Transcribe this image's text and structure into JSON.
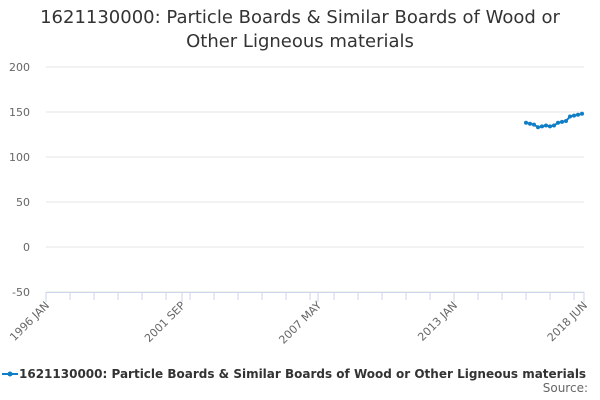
{
  "chart_data": {
    "type": "line",
    "title_lines": [
      "1621130000: Particle Boards & Similar Boards of Wood or",
      "Other Ligneous materials"
    ],
    "x_axis": {
      "type": "datetime",
      "min": "1996-01",
      "max": "2018-06",
      "tick_labels": [
        "1996 JAN",
        "2001 SEP",
        "2007 MAY",
        "2013 JAN",
        "2018 JUN"
      ],
      "minor_ticks_every_months": 12
    },
    "y_axis": {
      "min": -50,
      "max": 200,
      "tick_values": [
        -50,
        0,
        50,
        100,
        150,
        200
      ],
      "tick_labels": [
        "-50",
        "0",
        "50",
        "100",
        "150",
        "200"
      ],
      "grid": true
    },
    "series": [
      {
        "name": "1621130000: Particle Boards & Similar Boards of Wood or Other Ligneous materials",
        "color": "#0f7ec6",
        "points": [
          {
            "x": "2016-01",
            "y": 138
          },
          {
            "x": "2016-03",
            "y": 137
          },
          {
            "x": "2016-05",
            "y": 136
          },
          {
            "x": "2016-07",
            "y": 133
          },
          {
            "x": "2016-09",
            "y": 134
          },
          {
            "x": "2016-11",
            "y": 135
          },
          {
            "x": "2017-01",
            "y": 134
          },
          {
            "x": "2017-03",
            "y": 135
          },
          {
            "x": "2017-05",
            "y": 138
          },
          {
            "x": "2017-07",
            "y": 139
          },
          {
            "x": "2017-09",
            "y": 140
          },
          {
            "x": "2017-11",
            "y": 145
          },
          {
            "x": "2018-01",
            "y": 146
          },
          {
            "x": "2018-03",
            "y": 147
          },
          {
            "x": "2018-05",
            "y": 148
          }
        ]
      }
    ],
    "legend": {
      "position": "bottom"
    },
    "credits": "Source:"
  }
}
